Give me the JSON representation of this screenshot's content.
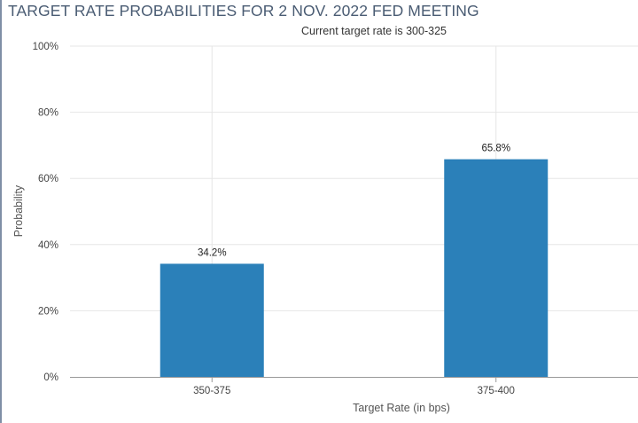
{
  "chart_data": {
    "type": "bar",
    "title": "TARGET RATE PROBABILITIES FOR 2 NOV. 2022 FED MEETING",
    "subtitle": "Current target rate is 300-325",
    "categories": [
      "350-375",
      "375-400"
    ],
    "values": [
      34.2,
      65.8
    ],
    "data_labels": [
      "34.2%",
      "65.8%"
    ],
    "xlabel": "Target Rate (in bps)",
    "ylabel": "Probability",
    "ylim": [
      0,
      100
    ],
    "yticks": [
      0,
      20,
      40,
      60,
      80,
      100
    ],
    "ytick_labels": [
      "0%",
      "20%",
      "40%",
      "60%",
      "80%",
      "100%"
    ],
    "grid": true,
    "legend": "none",
    "bar_color": "#2b80b9",
    "grid_color": "#e6e6e6"
  }
}
